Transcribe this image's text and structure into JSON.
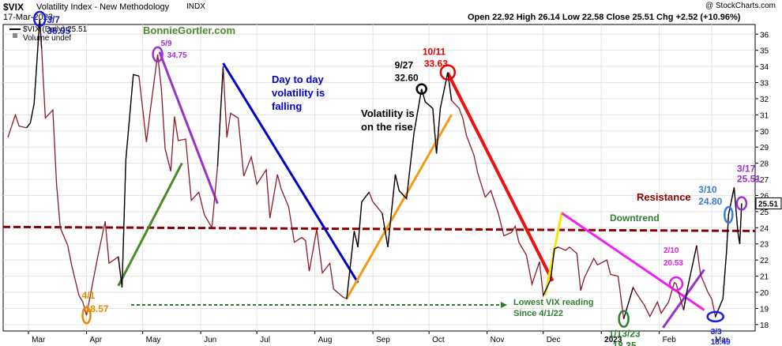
{
  "header": {
    "symbol": "$VIX",
    "name": "Volatility Index - New Methodology",
    "exchange": "INDX",
    "date": "17-Mar-2023",
    "copyright": "@ StockCharts.com",
    "quote": "Open 22.92  High 26.14  Low 22.58  Close 25.51  Chg +2.52 (+10.96%)",
    "legend_series": "$VIX (Daily) 25.51",
    "legend_volume": "Volume undef",
    "watermark": "BonnieGortler.com"
  },
  "colors": {
    "price": "#8b1a2b",
    "recent": "#000000",
    "resistance": "#8b0000",
    "trend_blue": "#0000cc",
    "trend_purple": "#9932cc",
    "trend_green": "#4a8a2a",
    "trend_orange": "#f39c12",
    "trend_red": "#ee1111",
    "trend_magenta": "#ee22ee",
    "trend_yellow": "#f5e600",
    "dashed_green": "#2e7d32",
    "price_tag_bg": "#0000aa"
  },
  "chart_data": {
    "type": "line",
    "title": "$VIX Volatility Index - New Methodology",
    "ylim": [
      17.6,
      36.6
    ],
    "y_ticks": [
      18,
      19,
      20,
      21,
      22,
      23,
      24,
      25,
      26,
      27,
      28,
      29,
      30,
      31,
      32,
      33,
      34,
      35,
      36
    ],
    "x_ticks": [
      "Mar",
      "Apr",
      "May",
      "Jun",
      "Jul",
      "Aug",
      "Sep",
      "Oct",
      "Nov",
      "Dec",
      "2023",
      "Feb",
      "Mar"
    ],
    "x_tick_dates": [
      "2022-03-01",
      "2022-04-01",
      "2022-05-01",
      "2022-06-01",
      "2022-07-01",
      "2022-08-01",
      "2022-09-01",
      "2022-10-01",
      "2022-11-01",
      "2022-12-01",
      "2023-01-01",
      "2023-02-01",
      "2023-03-01"
    ],
    "last_value": "25.51",
    "resistance_level": 24.0,
    "series": [
      {
        "name": "$VIX (Daily)",
        "points": [
          [
            "2022-02-18",
            29.6
          ],
          [
            "2022-02-22",
            31.0
          ],
          [
            "2022-02-24",
            30.3
          ],
          [
            "2022-02-28",
            30.2
          ],
          [
            "2022-03-02",
            30.5
          ],
          [
            "2022-03-04",
            31.7
          ],
          [
            "2022-03-07",
            36.95
          ],
          [
            "2022-03-08",
            35.1
          ],
          [
            "2022-03-10",
            30.8
          ],
          [
            "2022-03-14",
            31.3
          ],
          [
            "2022-03-16",
            26.7
          ],
          [
            "2022-03-18",
            24.0
          ],
          [
            "2022-03-22",
            22.9
          ],
          [
            "2022-03-24",
            21.7
          ],
          [
            "2022-03-28",
            19.8
          ],
          [
            "2022-03-30",
            19.4
          ],
          [
            "2022-04-01",
            18.57
          ],
          [
            "2022-04-05",
            21.0
          ],
          [
            "2022-04-07",
            22.2
          ],
          [
            "2022-04-11",
            24.4
          ],
          [
            "2022-04-13",
            21.8
          ],
          [
            "2022-04-18",
            22.2
          ],
          [
            "2022-04-20",
            20.3
          ],
          [
            "2022-04-22",
            28.2
          ],
          [
            "2022-04-26",
            33.5
          ],
          [
            "2022-04-29",
            33.4
          ],
          [
            "2022-05-03",
            29.3
          ],
          [
            "2022-05-05",
            31.2
          ],
          [
            "2022-05-09",
            34.75
          ],
          [
            "2022-05-11",
            32.6
          ],
          [
            "2022-05-13",
            28.9
          ],
          [
            "2022-05-16",
            27.5
          ],
          [
            "2022-05-18",
            30.9
          ],
          [
            "2022-05-20",
            29.4
          ],
          [
            "2022-05-24",
            29.5
          ],
          [
            "2022-05-27",
            25.7
          ],
          [
            "2022-05-31",
            26.2
          ],
          [
            "2022-06-03",
            24.8
          ],
          [
            "2022-06-07",
            24.0
          ],
          [
            "2022-06-10",
            27.8
          ],
          [
            "2022-06-13",
            34.0
          ],
          [
            "2022-06-15",
            29.6
          ],
          [
            "2022-06-17",
            31.1
          ],
          [
            "2022-06-21",
            30.8
          ],
          [
            "2022-06-24",
            27.2
          ],
          [
            "2022-06-28",
            28.4
          ],
          [
            "2022-07-01",
            26.7
          ],
          [
            "2022-07-06",
            27.6
          ],
          [
            "2022-07-08",
            24.6
          ],
          [
            "2022-07-12",
            27.3
          ],
          [
            "2022-07-14",
            26.4
          ],
          [
            "2022-07-18",
            25.3
          ],
          [
            "2022-07-21",
            23.1
          ],
          [
            "2022-07-25",
            23.4
          ],
          [
            "2022-07-27",
            23.2
          ],
          [
            "2022-07-29",
            21.3
          ],
          [
            "2022-08-02",
            23.9
          ],
          [
            "2022-08-05",
            21.2
          ],
          [
            "2022-08-09",
            21.8
          ],
          [
            "2022-08-11",
            20.2
          ],
          [
            "2022-08-16",
            19.7
          ],
          [
            "2022-08-18",
            19.6
          ],
          [
            "2022-08-22",
            23.8
          ],
          [
            "2022-08-24",
            22.8
          ],
          [
            "2022-08-26",
            25.6
          ],
          [
            "2022-08-30",
            26.2
          ],
          [
            "2022-09-01",
            25.6
          ],
          [
            "2022-09-06",
            24.9
          ],
          [
            "2022-09-09",
            22.8
          ],
          [
            "2022-09-13",
            27.3
          ],
          [
            "2022-09-15",
            26.3
          ],
          [
            "2022-09-19",
            25.8
          ],
          [
            "2022-09-21",
            27.9
          ],
          [
            "2022-09-23",
            29.9
          ],
          [
            "2022-09-27",
            32.6
          ],
          [
            "2022-09-29",
            31.8
          ],
          [
            "2022-10-03",
            31.4
          ],
          [
            "2022-10-05",
            28.6
          ],
          [
            "2022-10-07",
            31.4
          ],
          [
            "2022-10-11",
            33.63
          ],
          [
            "2022-10-13",
            31.9
          ],
          [
            "2022-10-17",
            31.4
          ],
          [
            "2022-10-19",
            30.8
          ],
          [
            "2022-10-21",
            29.7
          ],
          [
            "2022-10-25",
            28.5
          ],
          [
            "2022-10-27",
            27.4
          ],
          [
            "2022-10-31",
            25.9
          ],
          [
            "2022-11-03",
            26.3
          ],
          [
            "2022-11-07",
            24.9
          ],
          [
            "2022-11-10",
            23.5
          ],
          [
            "2022-11-14",
            23.7
          ],
          [
            "2022-11-16",
            24.1
          ],
          [
            "2022-11-18",
            23.1
          ],
          [
            "2022-11-22",
            22.3
          ],
          [
            "2022-11-25",
            20.5
          ],
          [
            "2022-11-29",
            21.9
          ],
          [
            "2022-12-01",
            19.8
          ],
          [
            "2022-12-05",
            20.8
          ],
          [
            "2022-12-07",
            22.7
          ],
          [
            "2022-12-09",
            22.8
          ],
          [
            "2022-12-13",
            22.6
          ],
          [
            "2022-12-15",
            22.8
          ],
          [
            "2022-12-19",
            22.4
          ],
          [
            "2022-12-21",
            20.1
          ],
          [
            "2022-12-23",
            20.9
          ],
          [
            "2022-12-28",
            22.1
          ],
          [
            "2022-12-30",
            21.7
          ],
          [
            "2023-01-04",
            22.0
          ],
          [
            "2023-01-06",
            21.1
          ],
          [
            "2023-01-10",
            21.0
          ],
          [
            "2023-01-13",
            18.35
          ],
          [
            "2023-01-18",
            20.3
          ],
          [
            "2023-01-20",
            19.9
          ],
          [
            "2023-01-24",
            19.2
          ],
          [
            "2023-01-27",
            18.5
          ],
          [
            "2023-01-31",
            19.4
          ],
          [
            "2023-02-02",
            18.7
          ],
          [
            "2023-02-06",
            19.4
          ],
          [
            "2023-02-09",
            20.6
          ],
          [
            "2023-02-10",
            20.53
          ],
          [
            "2023-02-14",
            18.9
          ],
          [
            "2023-02-16",
            20.2
          ],
          [
            "2023-02-21",
            22.9
          ],
          [
            "2023-02-23",
            21.1
          ],
          [
            "2023-02-27",
            20.0
          ],
          [
            "2023-03-01",
            19.6
          ],
          [
            "2023-03-03",
            18.49
          ],
          [
            "2023-03-07",
            19.6
          ],
          [
            "2023-03-09",
            22.6
          ],
          [
            "2023-03-10",
            24.8
          ],
          [
            "2023-03-13",
            26.5
          ],
          [
            "2023-03-15",
            23.7
          ],
          [
            "2023-03-16",
            22.99
          ],
          [
            "2023-03-17",
            25.51
          ]
        ]
      }
    ],
    "annotations": [
      {
        "text": "3/7",
        "value": "36.95",
        "color": "#1a1ae6"
      },
      {
        "text": "5/9",
        "value": "34.75",
        "color": "#9b30d9"
      },
      {
        "text": "4/1",
        "value": "18.57",
        "color": "#e68a00"
      },
      {
        "text": "9/27",
        "value": "32.60",
        "color": "#000000"
      },
      {
        "text": "10/11",
        "value": "33.63",
        "color": "#e60000"
      },
      {
        "text": "1/13/23",
        "value": "18.35",
        "color": "#2e7d32"
      },
      {
        "text": "2/10",
        "value": "20.53",
        "color": "#e020e0"
      },
      {
        "text": "3/3",
        "value": "18.49",
        "color": "#1a1ae6"
      },
      {
        "text": "3/10",
        "value": "24.80",
        "color": "#3a7bd5"
      },
      {
        "text": "3/17",
        "value": "25.51",
        "color": "#9b30d9"
      }
    ],
    "notes": [
      {
        "text": "Day to day",
        "color": "#0000cc"
      },
      {
        "text": "volatility is",
        "color": "#0000cc"
      },
      {
        "text": "falling",
        "color": "#0000cc"
      },
      {
        "text": "Volatility is",
        "color": "#000000"
      },
      {
        "text": "on the rise",
        "color": "#000000"
      },
      {
        "text": "Resistance",
        "color": "#8b0000"
      },
      {
        "text": "Downtrend",
        "color": "#2e7d32"
      },
      {
        "text": "Lowest VIX reading",
        "color": "#2e7d32"
      },
      {
        "text": "Since 4/1/22",
        "color": "#2e7d32"
      }
    ]
  }
}
